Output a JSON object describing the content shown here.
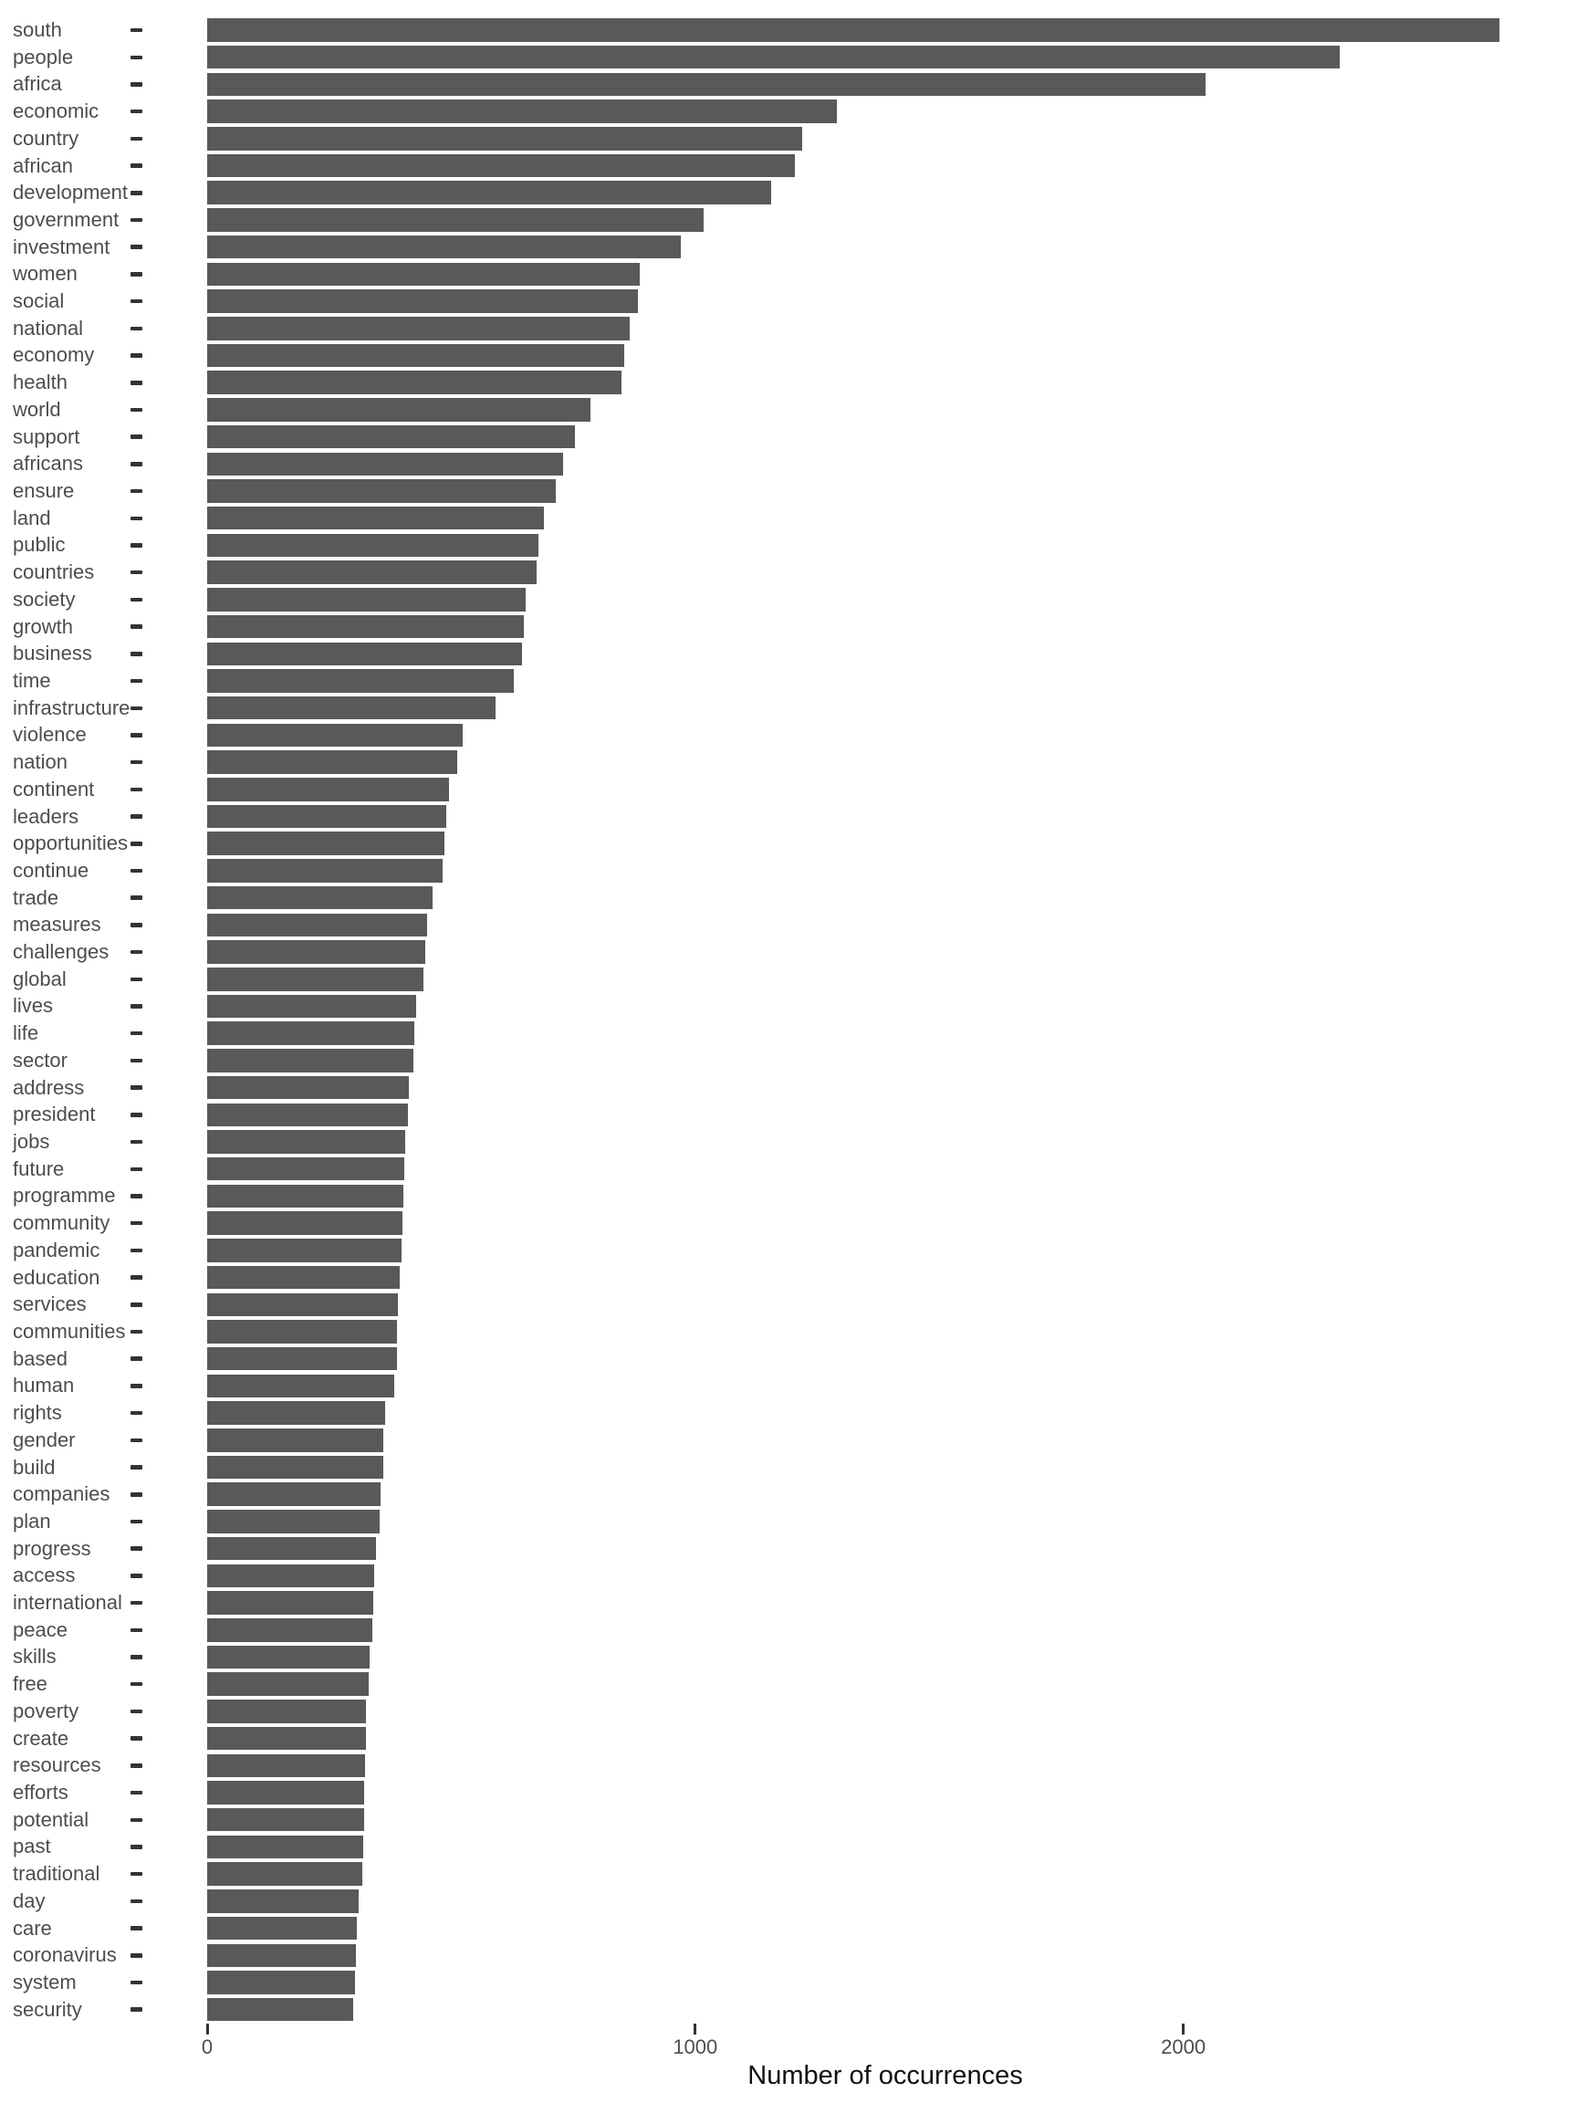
{
  "chart_data": {
    "type": "bar",
    "orientation": "horizontal",
    "title": "",
    "xlabel": "Number of occurrences",
    "ylabel": "",
    "legend": false,
    "grid": false,
    "bar_color": "#595959",
    "xlim": [
      0,
      2807
    ],
    "x_ticks": [
      0,
      1000,
      2000
    ],
    "x_tick_labels": [
      "0",
      "1000",
      "2000"
    ],
    "categories": [
      "south",
      "people",
      "africa",
      "economic",
      "country",
      "african",
      "development",
      "government",
      "investment",
      "women",
      "social",
      "national",
      "economy",
      "health",
      "world",
      "support",
      "africans",
      "ensure",
      "land",
      "public",
      "countries",
      "society",
      "growth",
      "business",
      "time",
      "infrastructure",
      "violence",
      "nation",
      "continent",
      "leaders",
      "opportunities",
      "continue",
      "trade",
      "measures",
      "challenges",
      "global",
      "lives",
      "life",
      "sector",
      "address",
      "president",
      "jobs",
      "future",
      "programme",
      "community",
      "pandemic",
      "education",
      "services",
      "communities",
      "based",
      "human",
      "rights",
      "gender",
      "build",
      "companies",
      "plan",
      "progress",
      "access",
      "international",
      "peace",
      "skills",
      "free",
      "poverty",
      "create",
      "resources",
      "efforts",
      "potential",
      "past",
      "traditional",
      "day",
      "care",
      "coronavirus",
      "system",
      "security"
    ],
    "values": [
      2648,
      2320,
      2045,
      1290,
      1220,
      1205,
      1155,
      1018,
      970,
      886,
      882,
      865,
      855,
      849,
      786,
      753,
      729,
      714,
      690,
      678,
      675,
      652,
      648,
      645,
      628,
      590,
      523,
      512,
      496,
      489,
      487,
      482,
      461,
      451,
      447,
      443,
      429,
      424,
      423,
      414,
      412,
      405,
      404,
      402,
      400,
      399,
      394,
      391,
      389,
      388,
      384,
      365,
      361,
      360,
      356,
      354,
      346,
      343,
      341,
      338,
      333,
      331,
      326,
      325,
      323,
      322,
      321,
      320,
      318,
      310,
      307,
      304,
      302,
      300
    ]
  }
}
